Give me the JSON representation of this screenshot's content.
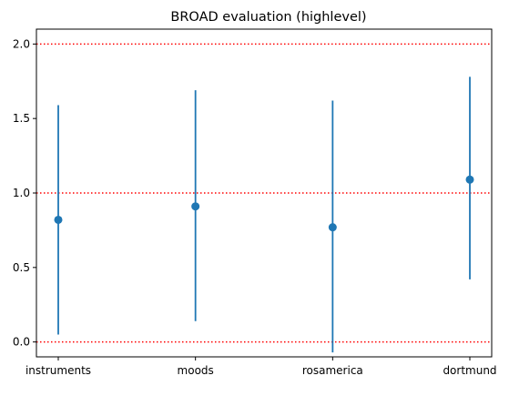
{
  "chart_data": {
    "type": "scatter",
    "title": "BROAD evaluation (highlevel)",
    "xlabel": "",
    "ylabel": "",
    "categories": [
      "instruments",
      "moods",
      "rosamerica",
      "dortmund"
    ],
    "series": [
      {
        "values": [
          0.82,
          0.91,
          0.77,
          1.09
        ],
        "error_low": [
          0.05,
          0.14,
          -0.07,
          0.42
        ],
        "error_high": [
          1.59,
          1.69,
          1.62,
          1.78
        ]
      }
    ],
    "ylim": [
      -0.1,
      2.1
    ],
    "yticks": [
      "0.0",
      "0.5",
      "1.0",
      "1.5",
      "2.0"
    ],
    "reference_lines": [
      0.0,
      1.0,
      2.0
    ],
    "grid": false,
    "colors": {
      "series": "#1f77b4",
      "reference_line": "#ff0000",
      "axis": "#000000"
    }
  }
}
